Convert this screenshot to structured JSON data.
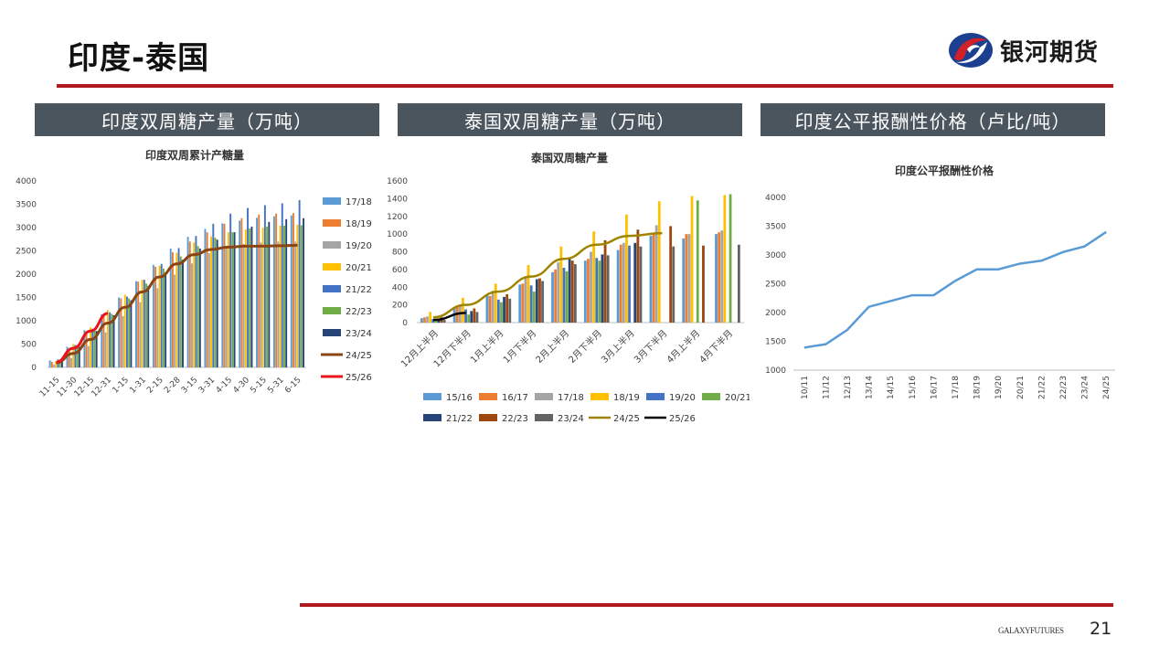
{
  "page": {
    "title": "印度-泰国",
    "logo_text": "银河期货",
    "footer_brand": "GALAXYFUTURES",
    "page_number": "21"
  },
  "colors": {
    "accent": "#b01a1f",
    "header_bg": "#4b555e",
    "logo_red": "#d0202a",
    "logo_blue": "#1d3f8f"
  },
  "panels": [
    {
      "header": "印度双周糖产量（万吨）"
    },
    {
      "header": "泰国双周糖产量（万吨）"
    },
    {
      "header": "印度公平报酬性价格（卢比/吨）"
    }
  ],
  "chart_data": [
    {
      "type": "bar",
      "title": "印度双周累计产糖量",
      "ylim": [
        0,
        4000
      ],
      "yticks": [
        0,
        500,
        1000,
        1500,
        2000,
        2500,
        3000,
        3500,
        4000
      ],
      "categories": [
        "11-15",
        "11-30",
        "12-15",
        "12-31",
        "1-15",
        "1-31",
        "2-15",
        "2-28",
        "3-15",
        "3-31",
        "4-15",
        "4-30",
        "5-15",
        "5-31",
        "6-15"
      ],
      "bar_series": [
        {
          "name": "17/18",
          "color": "#5b9bd5",
          "values": [
            150,
            440,
            800,
            1140,
            1500,
            1850,
            2200,
            2550,
            2800,
            2970,
            3090,
            3150,
            3210,
            3240,
            3260
          ]
        },
        {
          "name": "18/19",
          "color": "#ed7d31",
          "values": [
            120,
            400,
            780,
            1150,
            1480,
            1840,
            2160,
            2470,
            2700,
            2900,
            3080,
            3200,
            3280,
            3300,
            3310
          ]
        },
        {
          "name": "19/20",
          "color": "#a5a5a5",
          "values": [
            60,
            200,
            460,
            750,
            1100,
            1400,
            1700,
            1990,
            2230,
            2450,
            2600,
            2650,
            2680,
            2700,
            2700
          ]
        },
        {
          "name": "20/21",
          "color": "#ffc000",
          "values": [
            140,
            500,
            860,
            1230,
            1560,
            1880,
            2180,
            2460,
            2680,
            2810,
            2900,
            2960,
            3000,
            3040,
            3060
          ]
        },
        {
          "name": "21/22",
          "color": "#4472c4",
          "values": [
            170,
            480,
            830,
            1180,
            1520,
            1880,
            2220,
            2560,
            2820,
            3080,
            3300,
            3420,
            3480,
            3520,
            3590
          ]
        },
        {
          "name": "22/23",
          "color": "#70ad47",
          "values": [
            150,
            470,
            820,
            1150,
            1480,
            1800,
            2120,
            2380,
            2600,
            2780,
            2900,
            2980,
            3020,
            3040,
            3050
          ]
        },
        {
          "name": "23/24",
          "color": "#264478",
          "values": [
            120,
            440,
            780,
            1120,
            1440,
            1750,
            2040,
            2310,
            2550,
            2740,
            2900,
            3020,
            3120,
            3180,
            3200
          ]
        }
      ],
      "line_series": [
        {
          "name": "24/25",
          "color": "#8b4513",
          "values": [
            100,
            300,
            600,
            950,
            1290,
            1620,
            1940,
            2220,
            2420,
            2530,
            2580,
            2600,
            2600,
            2610,
            2620
          ]
        },
        {
          "name": "25/26",
          "color": "#e8131b",
          "values": [
            110,
            410,
            780,
            1160
          ]
        }
      ]
    },
    {
      "type": "bar",
      "title": "泰国双周糖产量",
      "ylim": [
        0,
        1600
      ],
      "yticks": [
        0,
        200,
        400,
        600,
        800,
        1000,
        1200,
        1400,
        1600
      ],
      "categories": [
        "12月上半月",
        "12月下半月",
        "1月上半月",
        "1月下半月",
        "2月上半月",
        "2月下半月",
        "3月上半月",
        "3月下半月",
        "4月上半月",
        "4月下半月"
      ],
      "bar_series": [
        {
          "name": "15/16",
          "color": "#5b9bd5",
          "values": [
            50,
            170,
            310,
            430,
            570,
            700,
            820,
            980,
            950,
            1000
          ]
        },
        {
          "name": "16/17",
          "color": "#ed7d31",
          "values": [
            60,
            180,
            300,
            440,
            600,
            720,
            880,
            1000,
            1000,
            1020
          ]
        },
        {
          "name": "17/18",
          "color": "#a5a5a5",
          "values": [
            70,
            200,
            360,
            520,
            680,
            800,
            900,
            1100,
            1000,
            1040
          ]
        },
        {
          "name": "18/19",
          "color": "#ffc000",
          "values": [
            120,
            280,
            440,
            650,
            860,
            1030,
            1220,
            1370,
            1430,
            1440
          ]
        },
        {
          "name": "19/20",
          "color": "#4472c4",
          "values": [
            40,
            150,
            260,
            420,
            620,
            730,
            870,
            0,
            0,
            0
          ]
        },
        {
          "name": "20/21",
          "color": "#70ad47",
          "values": [
            20,
            90,
            230,
            350,
            580,
            700,
            0,
            0,
            1380,
            1450
          ]
        },
        {
          "name": "21/22",
          "color": "#264478",
          "values": [
            30,
            130,
            290,
            490,
            720,
            770,
            900,
            0,
            0,
            0
          ]
        },
        {
          "name": "22/23",
          "color": "#9e480e",
          "values": [
            60,
            160,
            320,
            500,
            700,
            930,
            1050,
            1090,
            870,
            0
          ]
        },
        {
          "name": "23/24",
          "color": "#636363",
          "values": [
            30,
            120,
            270,
            470,
            660,
            760,
            860,
            860,
            0,
            880
          ]
        }
      ],
      "line_series": [
        {
          "name": "24/25",
          "color": "#a08400",
          "values": [
            60,
            200,
            350,
            520,
            720,
            880,
            980,
            1010,
            0,
            0
          ]
        },
        {
          "name": "25/26",
          "color": "#000000",
          "values": [
            30,
            110
          ]
        }
      ],
      "line_points": {
        "24/25": 8,
        "25/26": 2
      }
    },
    {
      "type": "line",
      "title": "印度公平报酬性价格",
      "ylim": [
        1000,
        4000
      ],
      "yticks": [
        1000,
        1500,
        2000,
        2500,
        3000,
        3500,
        4000
      ],
      "categories": [
        "10/11",
        "11/12",
        "12/13",
        "13/14",
        "14/15",
        "15/16",
        "16/17",
        "17/18",
        "18/19",
        "19/20",
        "20/21",
        "21/22",
        "22/23",
        "23/24",
        "24/25"
      ],
      "series": [
        {
          "color": "#5b9bd5",
          "values": [
            1391,
            1450,
            1700,
            2100,
            2200,
            2300,
            2300,
            2550,
            2750,
            2750,
            2850,
            2900,
            3050,
            3150,
            3400
          ]
        }
      ]
    }
  ]
}
